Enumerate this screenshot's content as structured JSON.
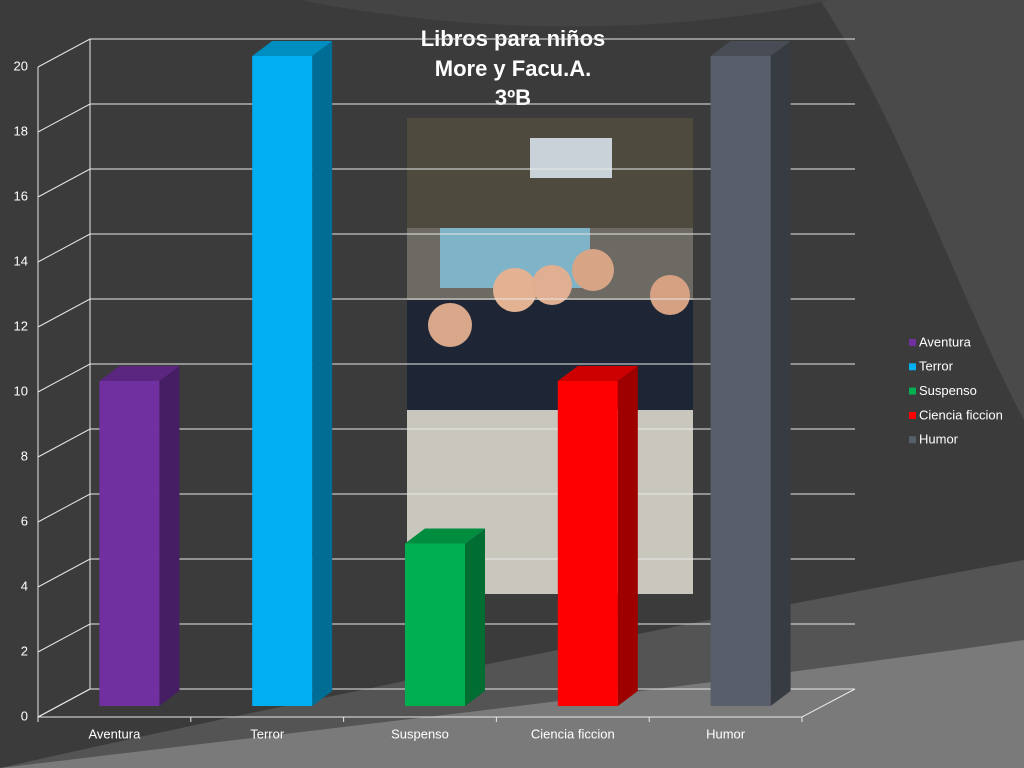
{
  "chart_data": {
    "type": "bar3d",
    "title": [
      "Libros para niños",
      "More y Facu.A.",
      "3ºB"
    ],
    "categories": [
      "Aventura",
      "Terror",
      "Suspenso",
      "Ciencia ficcion",
      "Humor"
    ],
    "series": [
      {
        "name": "Aventura",
        "color": "#7030a0",
        "values": [
          10,
          null,
          null,
          null,
          null
        ]
      },
      {
        "name": "Terror",
        "color": "#00b0f0",
        "values": [
          null,
          20,
          null,
          null,
          null
        ]
      },
      {
        "name": "Suspenso",
        "color": "#00b050",
        "values": [
          null,
          null,
          5,
          null,
          null
        ]
      },
      {
        "name": "Ciencia ficcion",
        "color": "#ff0000",
        "values": [
          null,
          null,
          null,
          10,
          null
        ]
      },
      {
        "name": "Humor",
        "color": "#595f6a",
        "values": [
          null,
          null,
          null,
          null,
          20
        ]
      }
    ],
    "ylim": [
      0,
      20
    ],
    "yticks": [
      0,
      2,
      4,
      6,
      8,
      10,
      12,
      14,
      16,
      18,
      20
    ],
    "grid": true,
    "legend": "right"
  }
}
